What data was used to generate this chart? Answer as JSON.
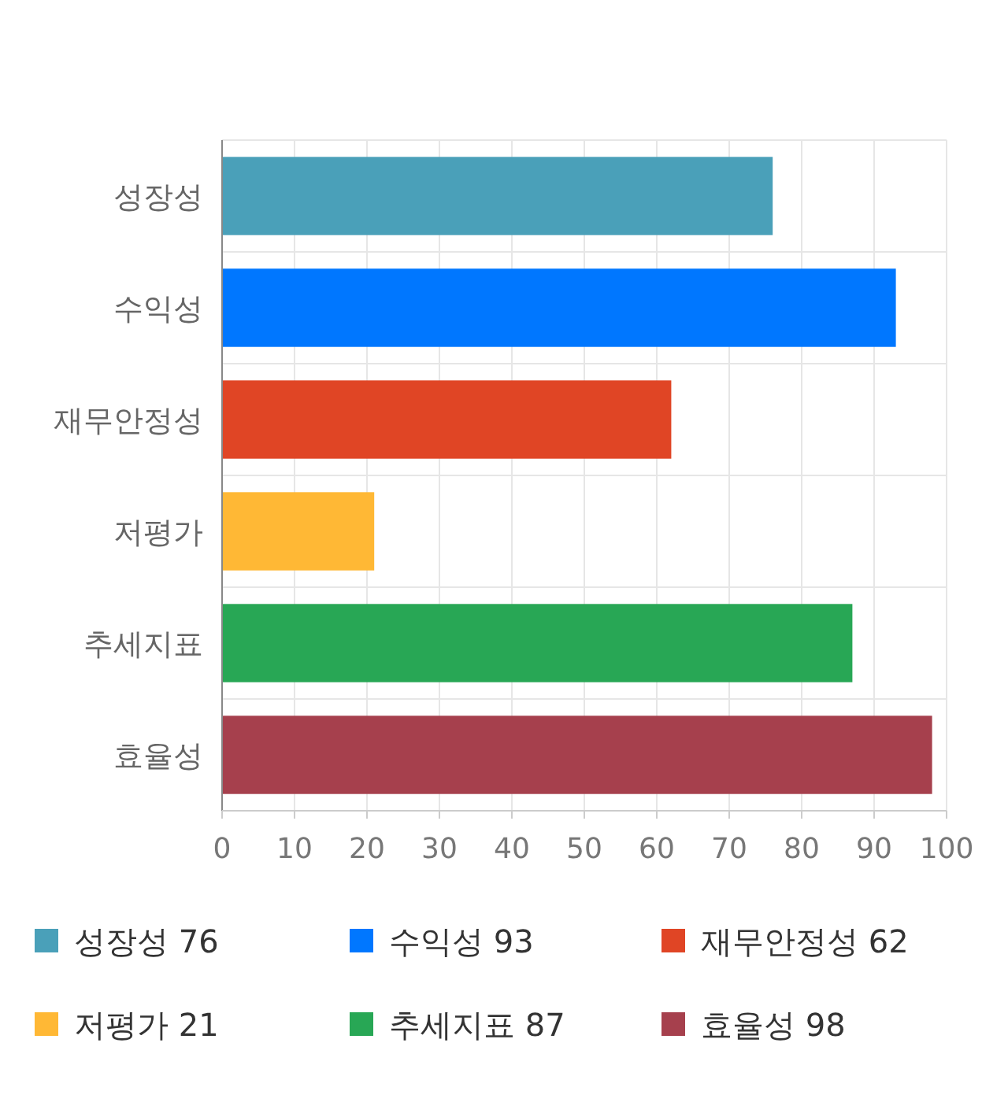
{
  "chart_data": {
    "type": "bar",
    "orientation": "horizontal",
    "stacked": true,
    "categories": [
      "성장성",
      "수익성",
      "재무안정성",
      "저평가",
      "추세지표",
      "효율성"
    ],
    "series": [
      {
        "name": "성장성 76",
        "color": "#4aa0b9",
        "values": [
          76,
          null,
          null,
          null,
          null,
          null
        ]
      },
      {
        "name": "수익성 93",
        "color": "#0077ff",
        "values": [
          null,
          93,
          null,
          null,
          null,
          null
        ]
      },
      {
        "name": "재무안정성 62",
        "color": "#e04525",
        "values": [
          null,
          null,
          62,
          null,
          null,
          null
        ]
      },
      {
        "name": "저평가 21",
        "color": "#ffb835",
        "values": [
          null,
          null,
          null,
          21,
          null,
          null
        ]
      },
      {
        "name": "추세지표 87",
        "color": "#28a755",
        "values": [
          null,
          null,
          null,
          null,
          87,
          null
        ]
      },
      {
        "name": "효율성 98",
        "color": "#a6404d",
        "values": [
          null,
          null,
          null,
          null,
          null,
          98
        ]
      }
    ],
    "xlim": [
      0,
      100
    ],
    "xticks": [
      0,
      10,
      20,
      30,
      40,
      50,
      60,
      70,
      80,
      90,
      100
    ],
    "grid": true,
    "legend": "bottom"
  }
}
